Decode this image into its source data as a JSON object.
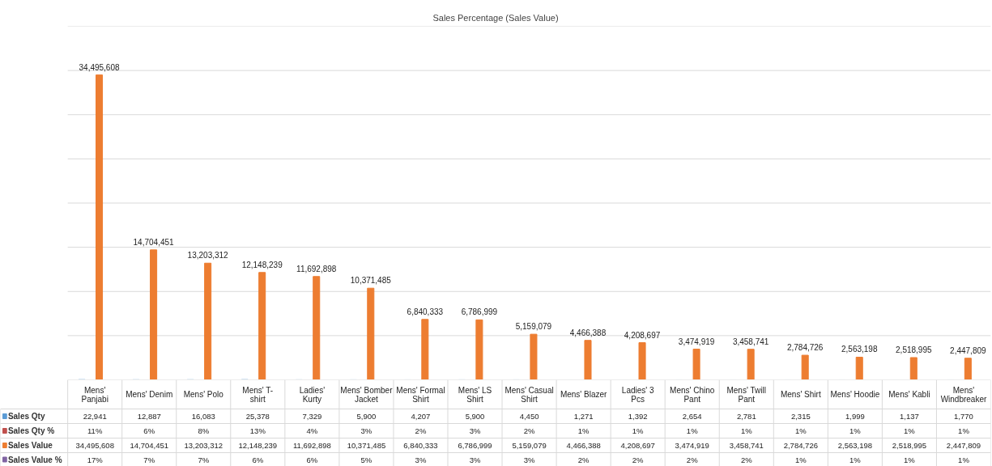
{
  "chart_data": {
    "type": "bar",
    "title": "Sales Percentage (Sales Value)",
    "categories": [
      "Mens' Panjabi",
      "Mens' Denim",
      "Mens' Polo",
      "Mens' T- shirt",
      "Ladies' Kurty",
      "Mens' Bomber Jacket",
      "Mens' Formal Shirt",
      "Mens' LS Shirt",
      "Mens' Casual Shirt",
      "Mens' Blazer",
      "Ladies' 3 Pcs",
      "Mens' Chino Pant",
      "Mens' Twill Pant",
      "Mens' Shirt",
      "Mens' Hoodie",
      "Mens' Kabli",
      "Mens' Windbreaker"
    ],
    "series": [
      {
        "name": "Sales Qty",
        "color": "#5b9bd5",
        "values": [
          22941,
          12887,
          16083,
          25378,
          7329,
          5900,
          4207,
          5900,
          4450,
          1271,
          1392,
          2654,
          2781,
          2315,
          1999,
          1137,
          1770
        ],
        "value_labels": [
          "22,941",
          "12,887",
          "16,083",
          "25,378",
          "7,329",
          "5,900",
          "4,207",
          "5,900",
          "4,450",
          "1,271",
          "1,392",
          "2,654",
          "2,781",
          "2,315",
          "1,999",
          "1,137",
          "1,770"
        ]
      },
      {
        "name": "Sales Qty %",
        "color": "#c0504d",
        "values": [
          11,
          6,
          8,
          13,
          4,
          3,
          2,
          3,
          2,
          1,
          1,
          1,
          1,
          1,
          1,
          1,
          1
        ],
        "value_labels": [
          "11%",
          "6%",
          "8%",
          "13%",
          "4%",
          "3%",
          "2%",
          "3%",
          "2%",
          "1%",
          "1%",
          "1%",
          "1%",
          "1%",
          "1%",
          "1%",
          "1%"
        ]
      },
      {
        "name": "Sales Value",
        "color": "#ed7d31",
        "values": [
          34495608,
          14704451,
          13203312,
          12148239,
          11692898,
          10371485,
          6840333,
          6786999,
          5159079,
          4466388,
          4208697,
          3474919,
          3458741,
          2784726,
          2563198,
          2518995,
          2447809
        ],
        "value_labels": [
          "34,495,608",
          "14,704,451",
          "13,203,312",
          "12,148,239",
          "11,692,898",
          "10,371,485",
          "6,840,333",
          "6,786,999",
          "5,159,079",
          "4,466,388",
          "4,208,697",
          "3,474,919",
          "3,458,741",
          "2,784,726",
          "2,563,198",
          "2,518,995",
          "2,447,809"
        ]
      },
      {
        "name": "Sales Value %",
        "color": "#8064a2",
        "values": [
          17,
          7,
          7,
          6,
          6,
          5,
          3,
          3,
          3,
          2,
          2,
          2,
          2,
          1,
          1,
          1,
          1
        ],
        "value_labels": [
          "17%",
          "7%",
          "7%",
          "6%",
          "6%",
          "5%",
          "3%",
          "3%",
          "3%",
          "2%",
          "2%",
          "2%",
          "2%",
          "1%",
          "1%",
          "1%",
          "1%"
        ]
      }
    ],
    "ylim": [
      0,
      40000000
    ],
    "yticks": [
      {
        "value": 0,
        "label": null
      },
      {
        "value": 5000000,
        "label": null
      },
      {
        "value": 10000000,
        "label": null
      },
      {
        "value": 15000000,
        "label": null
      },
      {
        "value": 20000000,
        "label": null
      },
      {
        "value": 25000000,
        "label": null
      },
      {
        "value": 30000000,
        "label": null
      },
      {
        "value": 35000000,
        "label": null
      },
      {
        "value": 40000000,
        "label": null
      }
    ],
    "tick_labels": false,
    "grid": "y",
    "legend": "bottom"
  }
}
